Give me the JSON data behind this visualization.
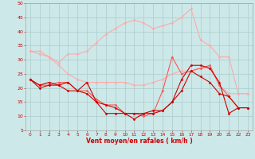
{
  "x": [
    0,
    1,
    2,
    3,
    4,
    5,
    6,
    7,
    8,
    9,
    10,
    11,
    12,
    13,
    14,
    15,
    16,
    17,
    18,
    19,
    20,
    21,
    22,
    23
  ],
  "series": [
    {
      "color": "#ffaaaa",
      "lw": 0.8,
      "marker": "D",
      "ms": 1.5,
      "y": [
        33,
        33,
        31,
        29,
        32,
        32,
        33,
        36,
        39,
        41,
        43,
        44,
        43,
        41,
        42,
        43,
        45,
        48,
        37,
        35,
        31,
        31,
        18,
        18
      ]
    },
    {
      "color": "#ffaaaa",
      "lw": 0.8,
      "marker": "D",
      "ms": 1.5,
      "y": [
        33,
        32,
        31,
        28,
        25,
        23,
        22,
        22,
        22,
        22,
        22,
        21,
        21,
        22,
        23,
        25,
        26,
        26,
        27,
        27,
        21,
        18,
        18,
        18
      ]
    },
    {
      "color": "#ff5555",
      "lw": 0.8,
      "marker": "D",
      "ms": 1.5,
      "y": [
        23,
        21,
        21,
        22,
        22,
        19,
        19,
        16,
        14,
        14,
        11,
        11,
        10,
        11,
        19,
        31,
        25,
        26,
        27,
        28,
        21,
        17,
        13,
        13
      ]
    },
    {
      "color": "#cc0000",
      "lw": 0.8,
      "marker": "D",
      "ms": 1.5,
      "y": [
        23,
        21,
        22,
        21,
        22,
        19,
        22,
        15,
        11,
        11,
        11,
        9,
        11,
        12,
        12,
        15,
        23,
        28,
        28,
        27,
        22,
        11,
        13,
        13
      ]
    },
    {
      "color": "#cc0000",
      "lw": 0.8,
      "marker": "D",
      "ms": 1.5,
      "y": [
        23,
        20,
        21,
        21,
        19,
        19,
        18,
        15,
        14,
        13,
        11,
        11,
        11,
        11,
        12,
        15,
        19,
        26,
        24,
        22,
        18,
        17,
        13,
        13
      ]
    }
  ],
  "xlabel": "Vent moyen/en rafales ( km/h )",
  "xlim": [
    -0.5,
    23.5
  ],
  "ylim": [
    5,
    50
  ],
  "yticks": [
    5,
    10,
    15,
    20,
    25,
    30,
    35,
    40,
    45,
    50
  ],
  "xticks": [
    0,
    1,
    2,
    3,
    4,
    5,
    6,
    7,
    8,
    9,
    10,
    11,
    12,
    13,
    14,
    15,
    16,
    17,
    18,
    19,
    20,
    21,
    22,
    23
  ],
  "bg_color": "#cce8e8",
  "grid_color": "#aacccc",
  "xlabel_color": "#cc0000",
  "tick_label_color": "#cc0000",
  "tick_color": "#cc0000"
}
